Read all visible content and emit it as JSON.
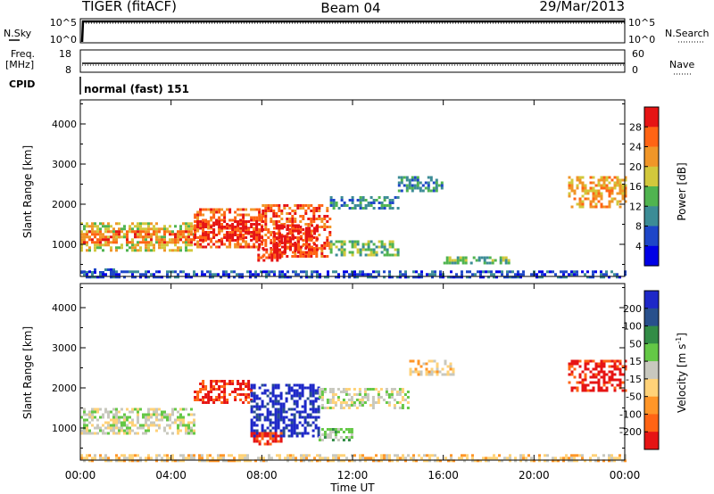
{
  "header": {
    "title": "TIGER (fitACF)",
    "beam": "Beam 04",
    "date": "29/Mar/2013"
  },
  "sky_panel": {
    "left_label": "N.Sky",
    "right_label": "N.Search",
    "left_ticks": [
      "10^5",
      "10^0"
    ],
    "right_ticks": [
      "10^5",
      "10^0"
    ]
  },
  "freq_panel": {
    "left_label_line1": "Freq.",
    "left_label_line2": "[MHz]",
    "left_ticks": [
      "18",
      "8"
    ],
    "right_label": "Nave",
    "right_ticks": [
      "60",
      "0"
    ]
  },
  "cpid": {
    "label": "CPID",
    "value": "normal (fast) 151"
  },
  "chart_data": [
    {
      "type": "heatmap",
      "name": "power",
      "ylabel": "Slant Range [km]",
      "xlabel": "Time UT",
      "x_ticks": [
        "00:00",
        "04:00",
        "08:00",
        "12:00",
        "16:00",
        "20:00",
        "00:00"
      ],
      "x_range_hours": [
        0,
        24
      ],
      "y_ticks": [
        1000,
        2000,
        3000,
        4000
      ],
      "ylim": [
        200,
        4600
      ],
      "colorbar_label": "Power [dB]",
      "colorbar_ticks": [
        "4",
        "8",
        "12",
        "16",
        "20",
        "24",
        "28"
      ],
      "colorbar_colors": [
        "#0000e6",
        "#1e46c8",
        "#3c8c96",
        "#50b450",
        "#d2c83c",
        "#f09628",
        "#ff6414",
        "#e61414"
      ],
      "regions": [
        {
          "t0": 0.0,
          "t1": 1.5,
          "r0": 300,
          "r1": 400,
          "level": 1
        },
        {
          "t0": 0.0,
          "t1": 5.0,
          "r0": 850,
          "r1": 1550,
          "level": 4
        },
        {
          "t0": 0.0,
          "t1": 5.0,
          "r0": 1050,
          "r1": 1350,
          "level": 6
        },
        {
          "t0": 5.0,
          "t1": 8.0,
          "r0": 900,
          "r1": 1900,
          "level": 6
        },
        {
          "t0": 5.0,
          "t1": 8.0,
          "r0": 1100,
          "r1": 1600,
          "level": 7
        },
        {
          "t0": 8.0,
          "t1": 11.0,
          "r0": 700,
          "r1": 2000,
          "level": 6
        },
        {
          "t0": 8.5,
          "t1": 10.5,
          "r0": 800,
          "r1": 1500,
          "level": 7
        },
        {
          "t0": 7.8,
          "t1": 8.8,
          "r0": 600,
          "r1": 900,
          "level": 7
        },
        {
          "t0": 11.0,
          "t1": 14.0,
          "r0": 1900,
          "r1": 2200,
          "level": 2
        },
        {
          "t0": 11.0,
          "t1": 14.0,
          "r0": 700,
          "r1": 1100,
          "level": 3
        },
        {
          "t0": 14.0,
          "t1": 16.0,
          "r0": 2300,
          "r1": 2700,
          "level": 2
        },
        {
          "t0": 16.0,
          "t1": 19.0,
          "r0": 500,
          "r1": 700,
          "level": 3
        },
        {
          "t0": 21.5,
          "t1": 24.0,
          "r0": 1900,
          "r1": 2700,
          "level": 5
        },
        {
          "t0": 0.0,
          "t1": 24.0,
          "r0": 200,
          "r1": 350,
          "level": 1
        }
      ]
    },
    {
      "type": "heatmap",
      "name": "velocity",
      "ylabel": "Slant Range [km]",
      "xlabel": "Time UT",
      "x_ticks": [
        "00:00",
        "04:00",
        "08:00",
        "12:00",
        "16:00",
        "20:00",
        "00:00"
      ],
      "x_range_hours": [
        0,
        24
      ],
      "y_ticks": [
        1000,
        2000,
        3000,
        4000
      ],
      "ylim": [
        200,
        4600
      ],
      "colorbar_label_main": "Velocity [m s",
      "colorbar_label_exp": "-1",
      "colorbar_label_end": "]",
      "colorbar_ticks": [
        "200",
        "100",
        "50",
        "15",
        "-15",
        "-50",
        "-100",
        "-200"
      ],
      "colorbar_colors": [
        "#1e28c8",
        "#28508c",
        "#328c46",
        "#64c846",
        "#c8c8be",
        "#ffd278",
        "#ff9628",
        "#ff6414",
        "#e61414"
      ],
      "regions": [
        {
          "t0": 0.0,
          "t1": 5.0,
          "r0": 850,
          "r1": 1500,
          "level": 4
        },
        {
          "t0": 5.0,
          "t1": 7.5,
          "r0": 1600,
          "r1": 2200,
          "level": 8
        },
        {
          "t0": 7.5,
          "t1": 10.5,
          "r0": 800,
          "r1": 2100,
          "level": 0
        },
        {
          "t0": 7.5,
          "t1": 8.8,
          "r0": 600,
          "r1": 900,
          "level": 8
        },
        {
          "t0": 10.5,
          "t1": 14.5,
          "r0": 1500,
          "r1": 2000,
          "level": 4
        },
        {
          "t0": 10.5,
          "t1": 12.0,
          "r0": 700,
          "r1": 1000,
          "level": 3
        },
        {
          "t0": 14.5,
          "t1": 16.5,
          "r0": 2300,
          "r1": 2700,
          "level": 5
        },
        {
          "t0": 21.5,
          "t1": 24.0,
          "r0": 1900,
          "r1": 2700,
          "level": 8
        },
        {
          "t0": 0.0,
          "t1": 24.0,
          "r0": 200,
          "r1": 350,
          "level": 5
        }
      ]
    }
  ]
}
